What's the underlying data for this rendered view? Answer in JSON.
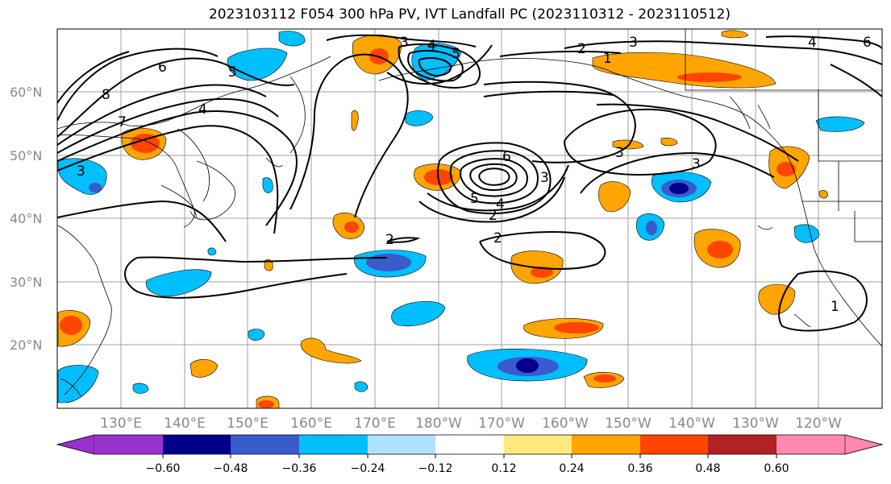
{
  "title": "2023103112 F054 300 hPa PV, IVT Landfall PC (2023110312 - 2023110512)",
  "lat_labels": [
    "60°N",
    "50°N",
    "40°N",
    "30°N",
    "20°N"
  ],
  "lat_values": [
    60,
    50,
    40,
    30,
    20
  ],
  "lon_labels": [
    "130°E",
    "140°E",
    "150°E",
    "160°E",
    "170°E",
    "180°W",
    "170°W",
    "160°W",
    "150°W",
    "140°W",
    "130°W",
    "120°W"
  ],
  "colorbar": {
    "ticks": [
      "−0.60",
      "−0.48",
      "−0.36",
      "−0.24",
      "−0.12",
      "0.12",
      "0.24",
      "0.36",
      "0.48",
      "0.60"
    ],
    "colors": [
      "#9932cc",
      "#00008b",
      "#3a5bcc",
      "#00bfff",
      "#b0e2ff",
      "#ffffff",
      "#ffe97f",
      "#ffa500",
      "#ff4500",
      "#b22222",
      "#ff88b0"
    ]
  },
  "contour_labels": [
    "6",
    "8",
    "7",
    "5",
    "4",
    "3",
    "3",
    "4",
    "5",
    "2",
    "1",
    "3",
    "4",
    "6",
    "6",
    "4",
    "5",
    "3",
    "2",
    "2",
    "2",
    "3",
    "3",
    "1"
  ]
}
